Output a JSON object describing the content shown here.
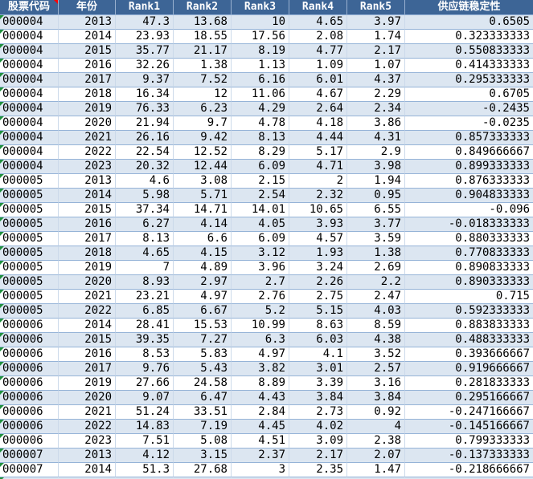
{
  "colors": {
    "header_bg": "#3d6596",
    "header_text": "#ffffff",
    "header_sep": "#9ab1d0",
    "band_bg": "#dce6f1",
    "grid_h": "#95b3d7",
    "grid_v": "#cbd9ea",
    "error_green": "#1e8f3c",
    "comment_red": "#ff0000"
  },
  "table": {
    "columns": [
      {
        "key": "stock_code",
        "label": "股票代码"
      },
      {
        "key": "year",
        "label": "年份"
      },
      {
        "key": "rank1",
        "label": "Rank1"
      },
      {
        "key": "rank2",
        "label": "Rank2"
      },
      {
        "key": "rank3",
        "label": "Rank3"
      },
      {
        "key": "rank4",
        "label": "Rank4"
      },
      {
        "key": "rank5",
        "label": "Rank5"
      },
      {
        "key": "supply_chain_stability",
        "label": "供应链稳定性"
      }
    ],
    "rows": [
      [
        "000004",
        "2013",
        "47.3",
        "13.68",
        "10",
        "4.65",
        "3.97",
        "0.6505"
      ],
      [
        "000004",
        "2014",
        "23.93",
        "18.55",
        "17.56",
        "2.08",
        "1.74",
        "0.323333333"
      ],
      [
        "000004",
        "2015",
        "35.77",
        "21.17",
        "8.19",
        "4.77",
        "2.17",
        "0.550833333"
      ],
      [
        "000004",
        "2016",
        "32.26",
        "1.38",
        "1.13",
        "1.09",
        "1.07",
        "0.414333333"
      ],
      [
        "000004",
        "2017",
        "9.37",
        "7.52",
        "6.16",
        "6.01",
        "4.37",
        "0.295333333"
      ],
      [
        "000004",
        "2018",
        "16.34",
        "12",
        "11.06",
        "4.67",
        "2.29",
        "0.6705"
      ],
      [
        "000004",
        "2019",
        "76.33",
        "6.23",
        "4.29",
        "2.64",
        "2.34",
        "-0.2435"
      ],
      [
        "000004",
        "2020",
        "21.94",
        "9.7",
        "4.78",
        "4.18",
        "3.86",
        "-0.0235"
      ],
      [
        "000004",
        "2021",
        "26.16",
        "9.42",
        "8.13",
        "4.44",
        "4.31",
        "0.857333333"
      ],
      [
        "000004",
        "2022",
        "22.54",
        "12.52",
        "8.29",
        "5.17",
        "2.9",
        "0.849666667"
      ],
      [
        "000004",
        "2023",
        "20.32",
        "12.44",
        "6.09",
        "4.71",
        "3.98",
        "0.899333333"
      ],
      [
        "000005",
        "2013",
        "4.6",
        "3.08",
        "2.15",
        "2",
        "1.94",
        "0.876333333"
      ],
      [
        "000005",
        "2014",
        "5.98",
        "5.71",
        "2.54",
        "2.32",
        "0.95",
        "0.904833333"
      ],
      [
        "000005",
        "2015",
        "37.34",
        "14.71",
        "14.01",
        "10.65",
        "6.55",
        "-0.096"
      ],
      [
        "000005",
        "2016",
        "6.27",
        "4.14",
        "4.05",
        "3.93",
        "3.77",
        "-0.018333333"
      ],
      [
        "000005",
        "2017",
        "8.13",
        "6.6",
        "6.09",
        "4.57",
        "3.59",
        "0.880333333"
      ],
      [
        "000005",
        "2018",
        "4.65",
        "4.15",
        "3.12",
        "1.93",
        "1.38",
        "0.770833333"
      ],
      [
        "000005",
        "2019",
        "7",
        "4.89",
        "3.96",
        "3.24",
        "2.69",
        "0.890833333"
      ],
      [
        "000005",
        "2020",
        "8.93",
        "2.97",
        "2.7",
        "2.26",
        "2.2",
        "0.890333333"
      ],
      [
        "000005",
        "2021",
        "23.21",
        "4.97",
        "2.76",
        "2.75",
        "2.47",
        "0.715"
      ],
      [
        "000005",
        "2022",
        "6.85",
        "6.67",
        "5.2",
        "5.15",
        "4.03",
        "0.592333333"
      ],
      [
        "000006",
        "2014",
        "28.41",
        "15.53",
        "10.99",
        "8.63",
        "8.59",
        "0.883833333"
      ],
      [
        "000006",
        "2015",
        "39.35",
        "7.27",
        "6.3",
        "6.03",
        "4.38",
        "0.488333333"
      ],
      [
        "000006",
        "2016",
        "8.53",
        "5.83",
        "4.97",
        "4.1",
        "3.52",
        "0.393666667"
      ],
      [
        "000006",
        "2017",
        "9.76",
        "5.43",
        "3.82",
        "3.01",
        "2.57",
        "0.919666667"
      ],
      [
        "000006",
        "2019",
        "27.66",
        "24.58",
        "8.89",
        "3.39",
        "3.16",
        "0.281833333"
      ],
      [
        "000006",
        "2020",
        "9.07",
        "6.47",
        "4.43",
        "3.84",
        "3.84",
        "0.295166667"
      ],
      [
        "000006",
        "2021",
        "51.24",
        "33.51",
        "2.84",
        "2.73",
        "0.92",
        "-0.247166667"
      ],
      [
        "000006",
        "2022",
        "14.83",
        "7.19",
        "4.45",
        "4.02",
        "4",
        "-0.145166667"
      ],
      [
        "000006",
        "2023",
        "7.51",
        "5.08",
        "4.51",
        "3.09",
        "2.38",
        "0.799333333"
      ],
      [
        "000007",
        "2013",
        "4.12",
        "3.15",
        "2.37",
        "2.17",
        "2.07",
        "-0.137333333"
      ],
      [
        "000007",
        "2014",
        "51.3",
        "27.68",
        "3",
        "2.35",
        "1.47",
        "-0.218666667"
      ]
    ]
  }
}
